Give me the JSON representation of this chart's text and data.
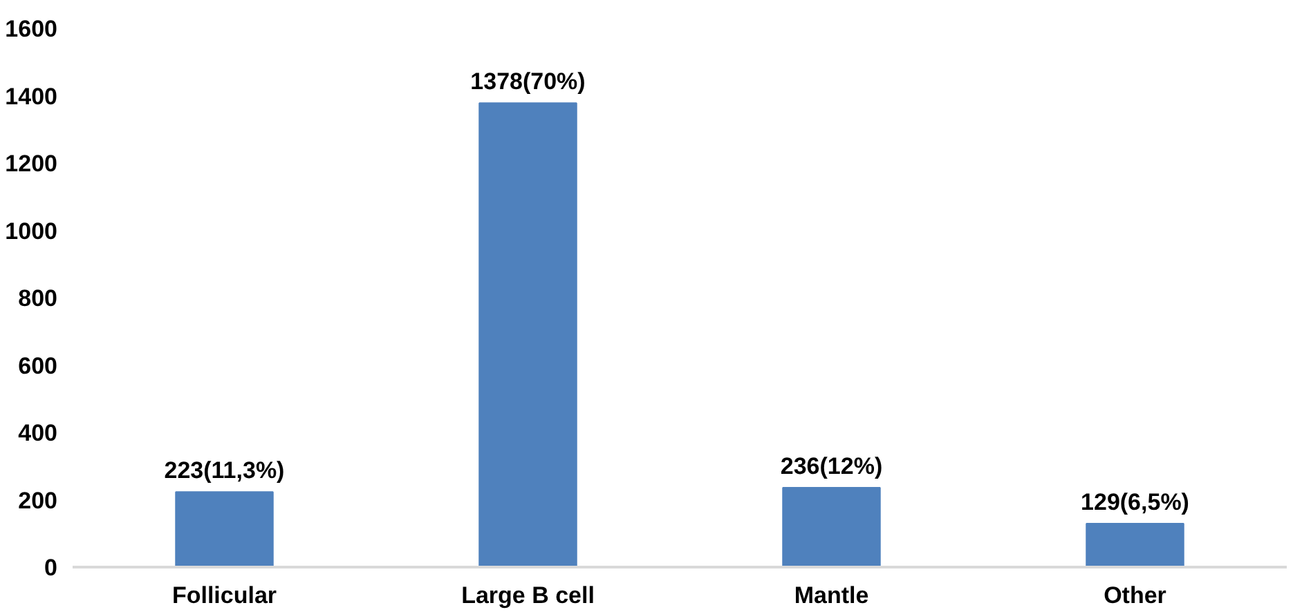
{
  "chart_data": {
    "type": "bar",
    "categories": [
      "Follicular",
      "Large B cell",
      "Mantle",
      "Other"
    ],
    "values": [
      223,
      1378,
      236,
      129
    ],
    "value_labels": [
      "223(11,3%)",
      "1378(70%)",
      "236(12%)",
      "129(6,5%)"
    ],
    "color": "#4f81bd",
    "ylim": [
      0,
      1600
    ],
    "yticks": [
      0,
      200,
      400,
      600,
      800,
      1000,
      1200,
      1400,
      1600
    ],
    "grid": false
  }
}
